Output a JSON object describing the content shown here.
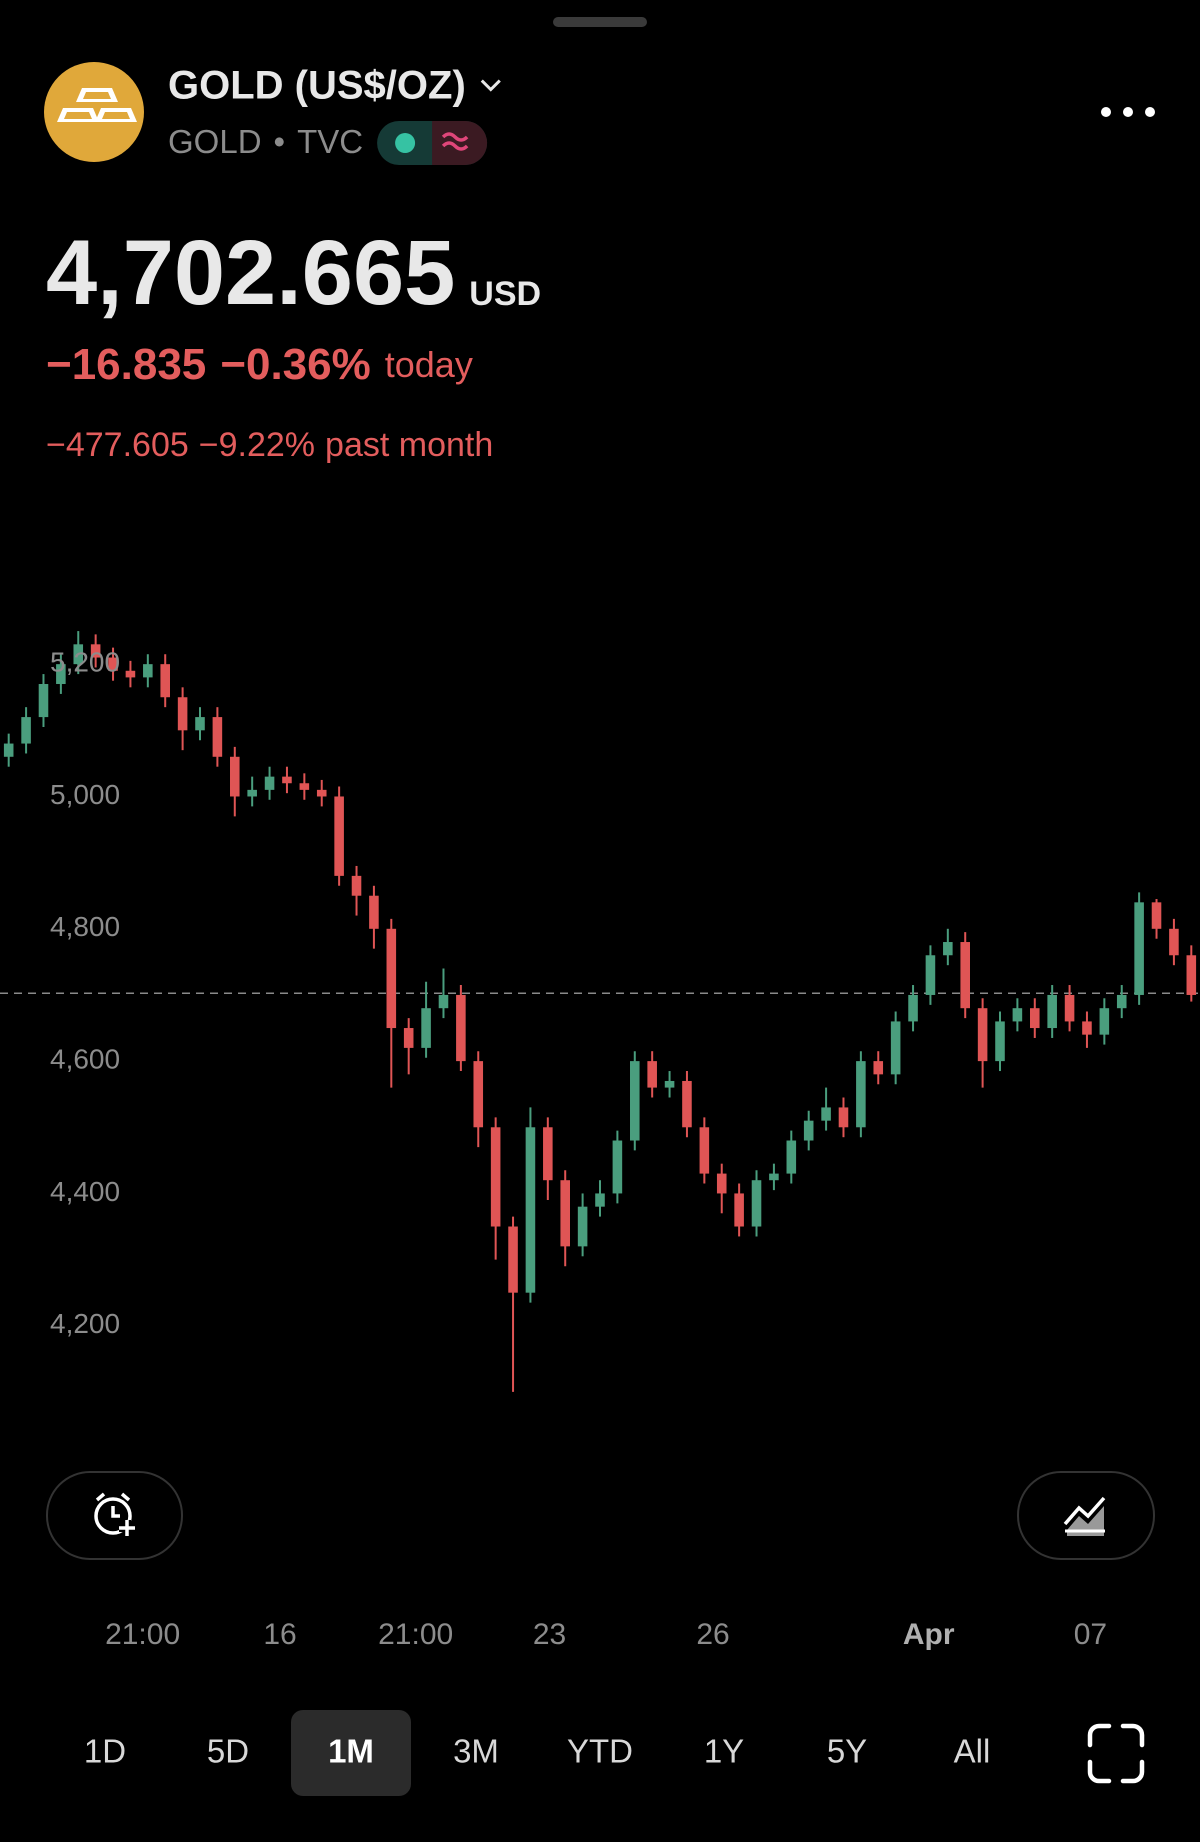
{
  "header": {
    "title": "GOLD (US$/OZ)",
    "symbol": "GOLD",
    "exchange": "TVC",
    "price": "4,702.665",
    "currency": "USD",
    "change_today": "−16.835",
    "change_today_pct": "−0.36%",
    "today_label": "today",
    "change_month": "−477.605",
    "change_month_pct": "−9.22%",
    "month_label": "past month"
  },
  "chart_data": {
    "type": "candlestick",
    "open": [
      5060,
      5080,
      5120,
      5170,
      5200,
      5230,
      5210,
      5190,
      5180,
      5200,
      5150,
      5100,
      5120,
      5060,
      5000,
      5010,
      5030,
      5020,
      5010,
      5000,
      4880,
      4850,
      4800,
      4650,
      4620,
      4680,
      4700,
      4600,
      4500,
      4350,
      4250,
      4500,
      4420,
      4320,
      4380,
      4400,
      4480,
      4600,
      4560,
      4570,
      4500,
      4430,
      4400,
      4350,
      4420,
      4430,
      4480,
      4510,
      4530,
      4500,
      4600,
      4580,
      4660,
      4700,
      4760,
      4780,
      4680,
      4600,
      4660,
      4680,
      4650,
      4700,
      4660,
      4640,
      4680,
      4700,
      4840,
      4800,
      4760
    ],
    "high": [
      5095,
      5135,
      5185,
      5215,
      5250,
      5245,
      5225,
      5205,
      5215,
      5215,
      5165,
      5135,
      5135,
      5075,
      5030,
      5045,
      5045,
      5035,
      5025,
      5015,
      4895,
      4865,
      4815,
      4665,
      4720,
      4740,
      4715,
      4615,
      4515,
      4365,
      4530,
      4515,
      4435,
      4400,
      4420,
      4495,
      4615,
      4615,
      4585,
      4585,
      4515,
      4445,
      4415,
      4435,
      4445,
      4495,
      4525,
      4560,
      4545,
      4615,
      4615,
      4675,
      4715,
      4775,
      4800,
      4795,
      4695,
      4675,
      4695,
      4695,
      4715,
      4715,
      4675,
      4695,
      4715,
      4855,
      4845,
      4815,
      4775
    ],
    "low": [
      5045,
      5065,
      5105,
      5155,
      5185,
      5195,
      5175,
      5165,
      5165,
      5135,
      5070,
      5085,
      5045,
      4970,
      4985,
      4995,
      5005,
      4995,
      4985,
      4865,
      4820,
      4770,
      4560,
      4580,
      4605,
      4665,
      4585,
      4470,
      4300,
      4100,
      4235,
      4390,
      4290,
      4305,
      4365,
      4385,
      4465,
      4545,
      4545,
      4485,
      4415,
      4370,
      4335,
      4335,
      4405,
      4415,
      4465,
      4495,
      4485,
      4485,
      4565,
      4565,
      4645,
      4685,
      4745,
      4665,
      4560,
      4585,
      4645,
      4635,
      4635,
      4645,
      4620,
      4625,
      4665,
      4685,
      4785,
      4745,
      4690
    ],
    "close": [
      5080,
      5120,
      5170,
      5200,
      5230,
      5210,
      5190,
      5180,
      5200,
      5150,
      5100,
      5120,
      5060,
      5000,
      5010,
      5030,
      5020,
      5010,
      5000,
      4880,
      4850,
      4800,
      4650,
      4620,
      4680,
      4700,
      4600,
      4500,
      4350,
      4250,
      4500,
      4420,
      4320,
      4380,
      4400,
      4480,
      4600,
      4560,
      4570,
      4500,
      4430,
      4400,
      4350,
      4420,
      4430,
      4480,
      4510,
      4530,
      4500,
      4600,
      4580,
      4660,
      4700,
      4760,
      4780,
      4680,
      4600,
      4660,
      4680,
      4650,
      4700,
      4660,
      4640,
      4680,
      4700,
      4840,
      4800,
      4760,
      4700
    ],
    "xlim": [
      -0.5,
      68.5
    ],
    "xticks": [
      {
        "value": 7.7,
        "label": "21:00"
      },
      {
        "value": 15.6,
        "label": "16"
      },
      {
        "value": 23.4,
        "label": "21:00"
      },
      {
        "value": 31.1,
        "label": "23"
      },
      {
        "value": 40.5,
        "label": "26"
      },
      {
        "value": 52.9,
        "label": "Apr"
      },
      {
        "value": 62.2,
        "label": "07"
      }
    ],
    "ylim": [
      4050,
      5300
    ],
    "yticks": [
      {
        "value": 4200,
        "label": "4,200"
      },
      {
        "value": 4400,
        "label": "4,400"
      },
      {
        "value": 4600,
        "label": "4,600"
      },
      {
        "value": 4800,
        "label": "4,800"
      },
      {
        "value": 5000,
        "label": "5,000"
      },
      {
        "value": 5200,
        "label": "5,200"
      }
    ],
    "up_color": "#4a9e7e",
    "down_color": "#e05555",
    "last_price": 4702.665
  },
  "ranges": [
    "1D",
    "5D",
    "1M",
    "3M",
    "YTD",
    "1Y",
    "5Y",
    "All"
  ],
  "selected_range": "1M"
}
